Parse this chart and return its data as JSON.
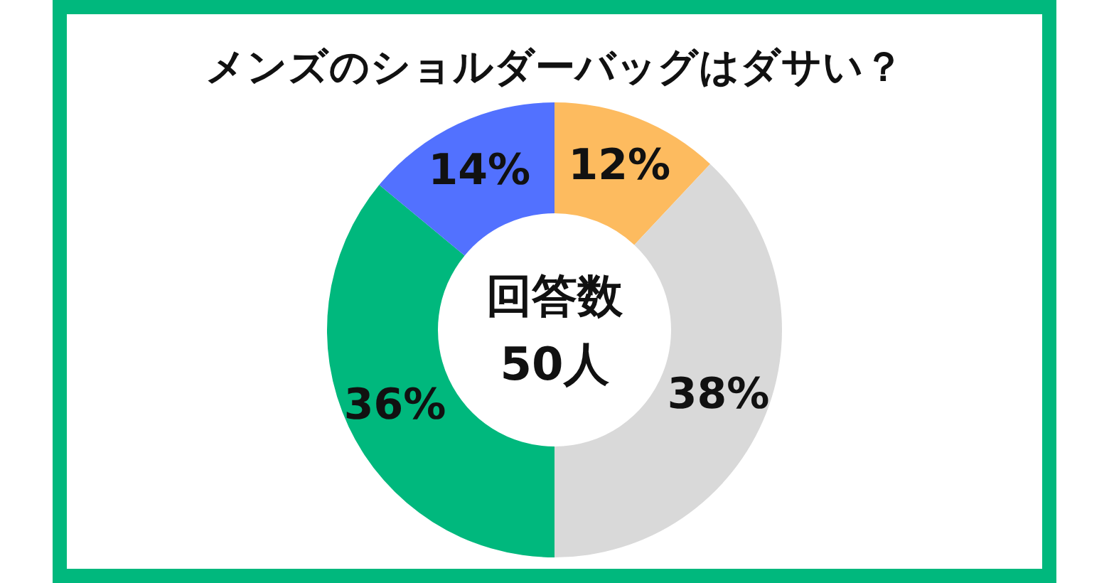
{
  "chart_data": {
    "type": "donut",
    "title": "メンズのショルダーバッグはダサい？",
    "categories": [
      null,
      null,
      null,
      null
    ],
    "values": [
      12,
      38,
      36,
      14
    ],
    "colors": [
      "#fdbb5f",
      "#d9d9d9",
      "#00b87d",
      "#5271ff"
    ],
    "value_labels": [
      "12%",
      "38%",
      "36%",
      "14%"
    ],
    "annotations": [
      "回答数",
      "50人"
    ]
  }
}
